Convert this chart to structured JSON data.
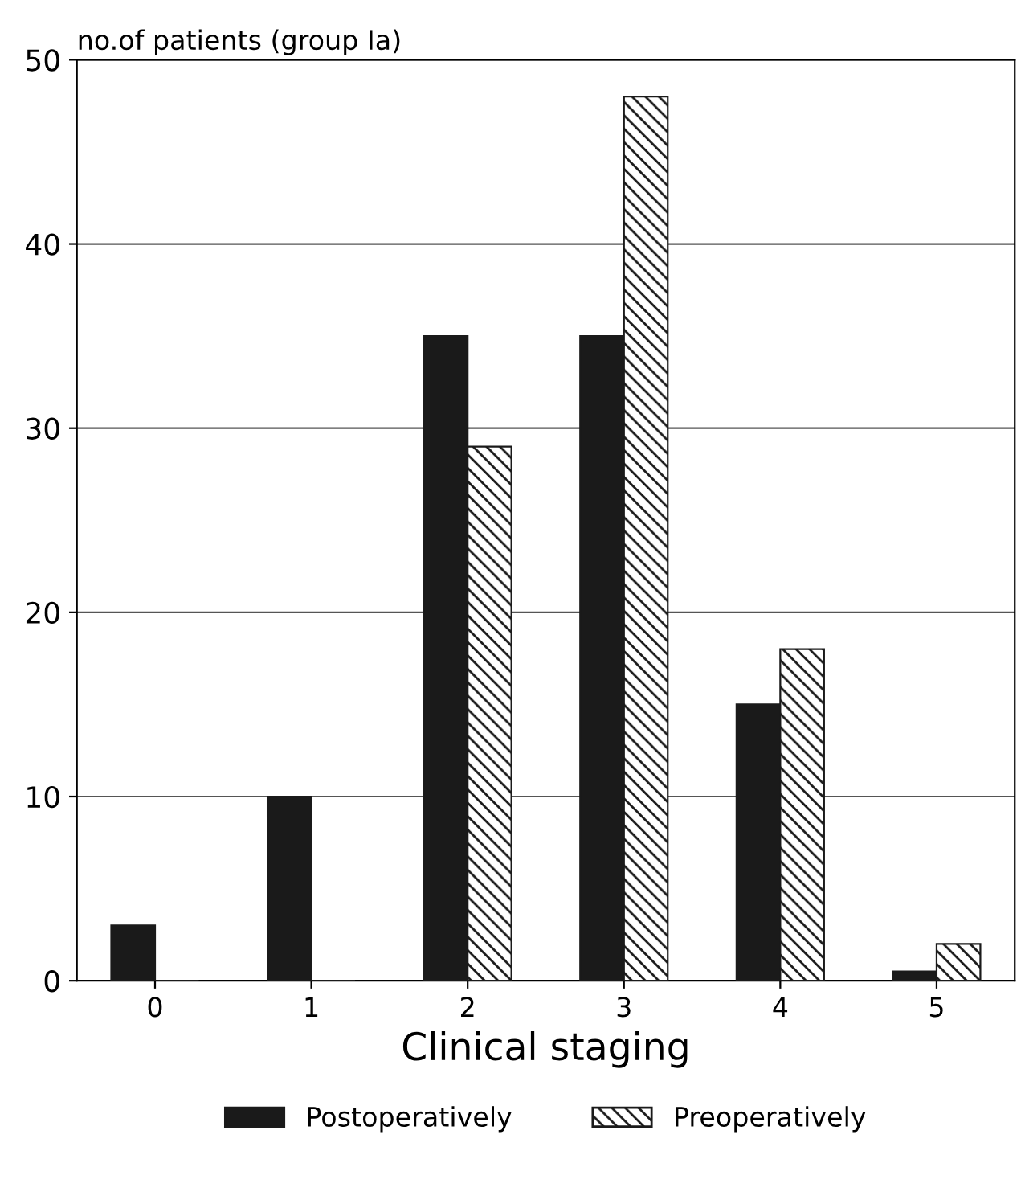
{
  "chart_data": {
    "type": "bar",
    "ylabel": "no.of patients (group Ia)",
    "xlabel": "Clinical staging",
    "categories": [
      "0",
      "1",
      "2",
      "3",
      "4",
      "5"
    ],
    "series": [
      {
        "name": "Postoperatively",
        "color": "#1a1a1a",
        "values": [
          3,
          10,
          35,
          35,
          15,
          0.5
        ]
      },
      {
        "name": "Preoperatively",
        "color": "#1a1a1a",
        "values": [
          0,
          0,
          29,
          48,
          18,
          2
        ]
      }
    ],
    "ylim": [
      0,
      50
    ],
    "yticks": [
      0,
      10,
      20,
      30,
      40,
      50
    ],
    "grid": "y",
    "legend": "bottom"
  }
}
